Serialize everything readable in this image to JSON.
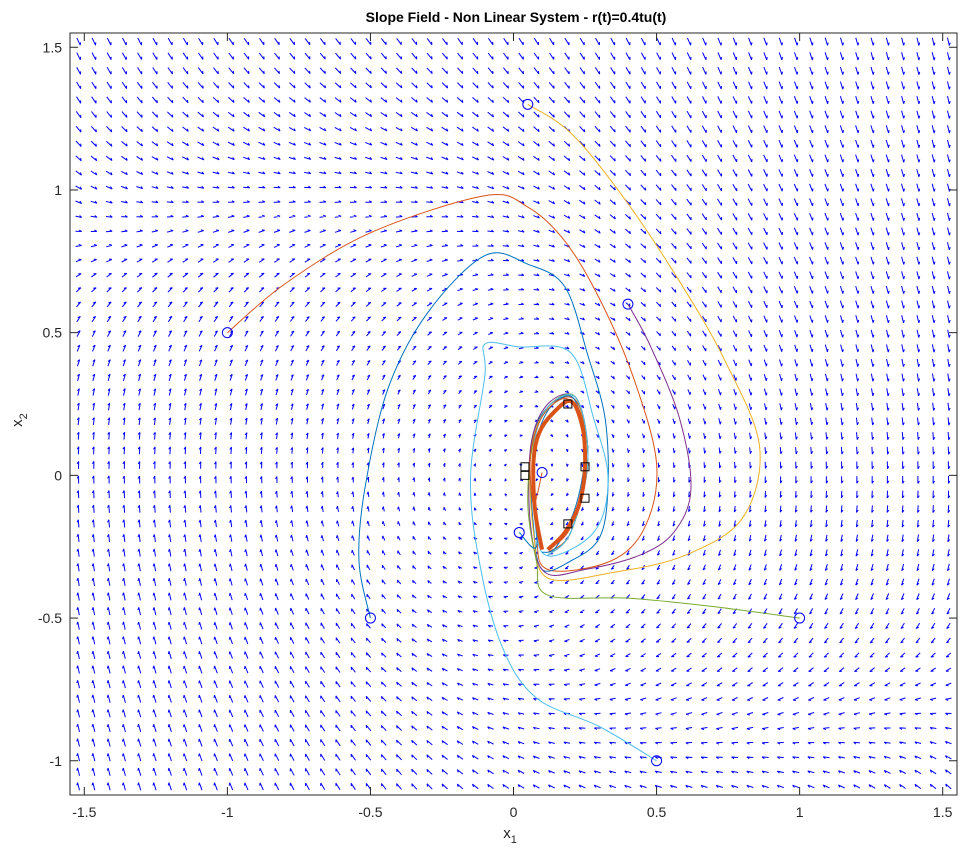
{
  "chart_data": {
    "type": "line",
    "title": "Slope Field - Non Linear System - r(t)=0.4tu(t)",
    "xlabel": "x",
    "xlabel_sub": "1",
    "ylabel": "x",
    "ylabel_sub": "2",
    "xlim": [
      -1.55,
      1.55
    ],
    "ylim": [
      -1.12,
      1.55
    ],
    "xticks": [
      -1.5,
      -1,
      -0.5,
      0,
      0.5,
      1,
      1.5
    ],
    "xtick_labels": [
      "-1.5",
      "-1",
      "-0.5",
      "0",
      "0.5",
      "1",
      "1.5"
    ],
    "yticks": [
      -1,
      -0.5,
      0,
      0.5,
      1,
      1.5
    ],
    "ytick_labels": [
      "-1",
      "-0.5",
      "0",
      "0.5",
      "1",
      "1.5"
    ],
    "grid": false,
    "field_color": "#0000ff",
    "series": [
      {
        "color": "#d95319",
        "width": 1,
        "start": [
          -1,
          0.5
        ],
        "points": [
          [
            -1,
            0.5
          ],
          [
            -0.8,
            0.67
          ],
          [
            -0.5,
            0.85
          ],
          [
            -0.1,
            0.98
          ],
          [
            0.05,
            0.94
          ],
          [
            0.18,
            0.82
          ],
          [
            0.3,
            0.62
          ],
          [
            0.42,
            0.34
          ],
          [
            0.5,
            0.04
          ],
          [
            0.46,
            -0.18
          ],
          [
            0.34,
            -0.3
          ],
          [
            0.12,
            -0.33
          ],
          [
            0.08,
            -0.2
          ],
          [
            0.07,
            0.1
          ],
          [
            0.12,
            0.24
          ],
          [
            0.22,
            0.26
          ],
          [
            0.26,
            0.05
          ],
          [
            0.2,
            -0.2
          ],
          [
            0.12,
            -0.27
          ]
        ]
      },
      {
        "color": "#0072bd",
        "width": 1,
        "start": [
          -0.5,
          -0.5
        ],
        "points": [
          [
            -0.5,
            -0.5
          ],
          [
            -0.54,
            -0.3
          ],
          [
            -0.52,
            -0.05
          ],
          [
            -0.44,
            0.3
          ],
          [
            -0.3,
            0.57
          ],
          [
            -0.1,
            0.77
          ],
          [
            0.05,
            0.74
          ],
          [
            0.18,
            0.66
          ],
          [
            0.26,
            0.42
          ],
          [
            0.32,
            0.2
          ],
          [
            0.33,
            -0.05
          ],
          [
            0.3,
            -0.22
          ],
          [
            0.2,
            -0.3
          ],
          [
            0.1,
            -0.33
          ],
          [
            0.07,
            -0.18
          ],
          [
            0.06,
            0.1
          ],
          [
            0.12,
            0.24
          ],
          [
            0.22,
            0.27
          ],
          [
            0.26,
            0.05
          ],
          [
            0.2,
            -0.2
          ],
          [
            0.12,
            -0.28
          ]
        ]
      },
      {
        "color": "#edb120",
        "width": 1,
        "start": [
          0.05,
          1.3
        ],
        "points": [
          [
            0.05,
            1.3
          ],
          [
            0.2,
            1.2
          ],
          [
            0.38,
            0.98
          ],
          [
            0.58,
            0.68
          ],
          [
            0.74,
            0.4
          ],
          [
            0.86,
            0.1
          ],
          [
            0.8,
            -0.15
          ],
          [
            0.6,
            -0.28
          ],
          [
            0.35,
            -0.34
          ],
          [
            0.12,
            -0.36
          ],
          [
            0.07,
            -0.2
          ],
          [
            0.06,
            0.08
          ],
          [
            0.12,
            0.24
          ],
          [
            0.22,
            0.27
          ],
          [
            0.26,
            0.05
          ],
          [
            0.2,
            -0.2
          ],
          [
            0.12,
            -0.28
          ]
        ]
      },
      {
        "color": "#7e2f8e",
        "width": 1,
        "start": [
          0.4,
          0.6
        ],
        "points": [
          [
            0.4,
            0.6
          ],
          [
            0.48,
            0.45
          ],
          [
            0.58,
            0.2
          ],
          [
            0.62,
            -0.05
          ],
          [
            0.56,
            -0.2
          ],
          [
            0.44,
            -0.28
          ],
          [
            0.25,
            -0.33
          ],
          [
            0.11,
            -0.34
          ],
          [
            0.06,
            -0.18
          ],
          [
            0.06,
            0.1
          ],
          [
            0.12,
            0.25
          ],
          [
            0.22,
            0.27
          ],
          [
            0.26,
            0.05
          ],
          [
            0.2,
            -0.2
          ],
          [
            0.12,
            -0.28
          ]
        ]
      },
      {
        "color": "#77ac30",
        "width": 1,
        "start": [
          1,
          -0.5
        ],
        "points": [
          [
            1,
            -0.5
          ],
          [
            0.7,
            -0.46
          ],
          [
            0.4,
            -0.43
          ],
          [
            0.12,
            -0.42
          ],
          [
            0.08,
            -0.3
          ],
          [
            0.05,
            -0.1
          ],
          [
            0.07,
            0.12
          ],
          [
            0.13,
            0.25
          ],
          [
            0.22,
            0.27
          ],
          [
            0.26,
            0.05
          ],
          [
            0.2,
            -0.2
          ],
          [
            0.12,
            -0.28
          ]
        ]
      },
      {
        "color": "#4dbeee",
        "width": 1,
        "start": [
          0.5,
          -1
        ],
        "points": [
          [
            0.5,
            -1
          ],
          [
            0.3,
            -0.88
          ],
          [
            0.08,
            -0.78
          ],
          [
            -0.04,
            -0.6
          ],
          [
            -0.12,
            -0.3
          ],
          [
            -0.15,
            0
          ],
          [
            -0.1,
            0.35
          ],
          [
            -0.1,
            0.46
          ],
          [
            0.02,
            0.45
          ],
          [
            0.2,
            0.43
          ],
          [
            0.28,
            0.2
          ],
          [
            0.33,
            0.0
          ],
          [
            0.3,
            -0.17
          ],
          [
            0.2,
            -0.26
          ],
          [
            0.1,
            -0.27
          ],
          [
            0.07,
            -0.1
          ],
          [
            0.07,
            0.1
          ],
          [
            0.12,
            0.24
          ],
          [
            0.22,
            0.27
          ],
          [
            0.26,
            0.05
          ],
          [
            0.2,
            -0.2
          ],
          [
            0.12,
            -0.28
          ]
        ]
      },
      {
        "color": "#0072bd",
        "width": 1,
        "start": [
          0.02,
          -0.2
        ],
        "points": [
          [
            0.02,
            -0.2
          ],
          [
            0.08,
            -0.25
          ],
          [
            0.07,
            -0.05
          ],
          [
            0.08,
            0.12
          ],
          [
            0.13,
            0.24
          ],
          [
            0.21,
            0.27
          ],
          [
            0.25,
            0.1
          ],
          [
            0.22,
            -0.1
          ],
          [
            0.15,
            -0.25
          ],
          [
            0.1,
            -0.27
          ]
        ]
      },
      {
        "color": "#d95319",
        "width": 1,
        "start": [
          0.1,
          0.01
        ],
        "points": [
          [
            0.1,
            0.01
          ],
          [
            0.07,
            -0.1
          ],
          [
            0.06,
            0.08
          ],
          [
            0.11,
            0.22
          ],
          [
            0.2,
            0.26
          ],
          [
            0.25,
            0.06
          ],
          [
            0.2,
            -0.18
          ],
          [
            0.12,
            -0.26
          ]
        ]
      }
    ],
    "limit_cycle": {
      "color": "#d95319",
      "width": 4,
      "points": [
        [
          0.1,
          -0.26
        ],
        [
          0.075,
          -0.12
        ],
        [
          0.07,
          0.05
        ],
        [
          0.09,
          0.15
        ],
        [
          0.14,
          0.22
        ],
        [
          0.2,
          0.26
        ],
        [
          0.24,
          0.18
        ],
        [
          0.25,
          0.03
        ],
        [
          0.23,
          -0.1
        ],
        [
          0.18,
          -0.2
        ],
        [
          0.12,
          -0.26
        ]
      ]
    },
    "square_markers": [
      [
        0.04,
        0.03
      ],
      [
        0.04,
        0.0
      ],
      [
        0.19,
        0.25
      ],
      [
        0.25,
        0.03
      ],
      [
        0.25,
        -0.08
      ],
      [
        0.19,
        -0.17
      ]
    ]
  }
}
